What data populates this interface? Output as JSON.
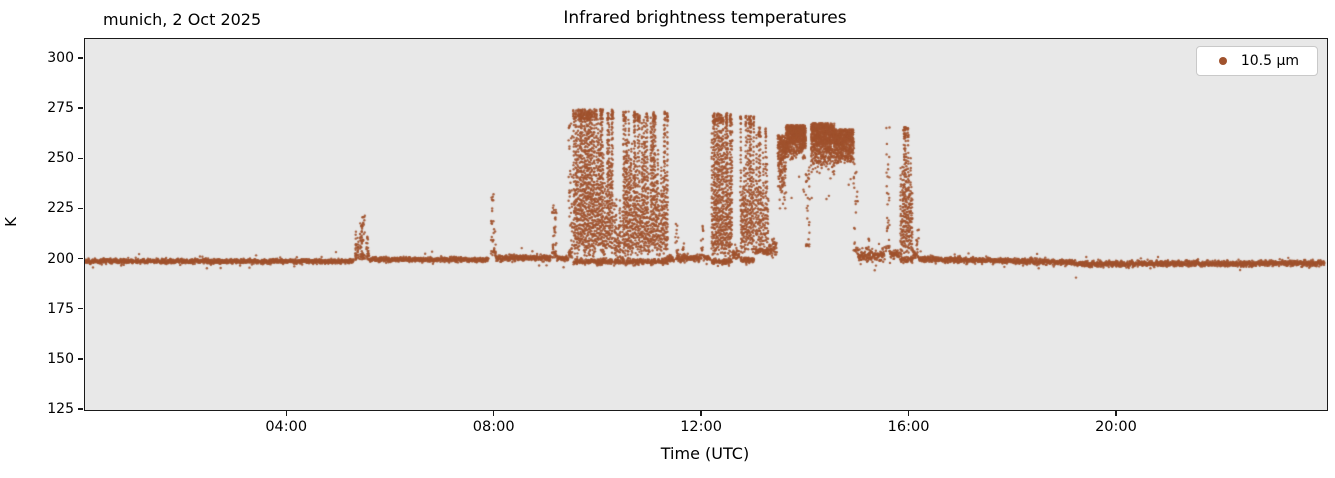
{
  "header": {
    "annotation": "munich, 2 Oct 2025",
    "title": "Infrared brightness temperatures"
  },
  "axes": {
    "xlabel": "Time (UTC)",
    "ylabel": "K",
    "x_ticks": [
      {
        "value": 4,
        "label": "04:00"
      },
      {
        "value": 8,
        "label": "08:00"
      },
      {
        "value": 12,
        "label": "12:00"
      },
      {
        "value": 16,
        "label": "16:00"
      },
      {
        "value": 20,
        "label": "20:00"
      }
    ],
    "y_ticks": [
      {
        "value": 125,
        "label": "125"
      },
      {
        "value": 150,
        "label": "150"
      },
      {
        "value": 175,
        "label": "175"
      },
      {
        "value": 200,
        "label": "200"
      },
      {
        "value": 225,
        "label": "225"
      },
      {
        "value": 250,
        "label": "250"
      },
      {
        "value": 275,
        "label": "275"
      },
      {
        "value": 300,
        "label": "300"
      }
    ],
    "spine_color": "#1a1a1a"
  },
  "legend": {
    "label": "10.5 μm",
    "marker_color": "#A0522D"
  },
  "chart_data": {
    "type": "scatter",
    "title": "Infrared brightness temperatures",
    "annotation": "munich, 2 Oct 2025",
    "xlabel": "Time (UTC)",
    "ylabel": "K",
    "xlim": [
      0.1,
      24.05
    ],
    "ylim": [
      125,
      310
    ],
    "plot_bg": "#e8e8e8",
    "grid": false,
    "legend_position": "upper right",
    "series": [
      {
        "name": "10.5 μm",
        "color": "#A0522D",
        "marker": "dot"
      }
    ],
    "segments": [
      {
        "kind": "flat",
        "t0": 0.1,
        "t1": 5.28,
        "y": 199.2,
        "noise": 0.55
      },
      {
        "kind": "column",
        "t0": 5.3,
        "t1": 5.38,
        "y0": 200,
        "y1": 214,
        "n": 25
      },
      {
        "kind": "column",
        "t0": 5.4,
        "t1": 5.5,
        "y0": 200,
        "y1": 222,
        "n": 45
      },
      {
        "kind": "column",
        "t0": 5.52,
        "t1": 5.58,
        "y0": 200,
        "y1": 212,
        "n": 18
      },
      {
        "kind": "flat",
        "t0": 5.58,
        "t1": 7.88,
        "y": 200.0,
        "noise": 0.55
      },
      {
        "kind": "column",
        "t0": 7.92,
        "t1": 8.02,
        "y0": 202,
        "y1": 235,
        "n": 28
      },
      {
        "kind": "flat",
        "t0": 8.02,
        "t1": 9.08,
        "y": 200.8,
        "noise": 0.7
      },
      {
        "kind": "column",
        "t0": 9.1,
        "t1": 9.2,
        "y0": 201,
        "y1": 228,
        "n": 35
      },
      {
        "kind": "flat",
        "t0": 9.2,
        "t1": 9.42,
        "y": 200.5,
        "noise": 0.6
      },
      {
        "kind": "column",
        "t0": 9.42,
        "t1": 9.5,
        "y0": 201,
        "y1": 268,
        "n": 40
      },
      {
        "kind": "burst",
        "t0": 9.52,
        "t1": 10.28,
        "y0": 199,
        "y1": 275,
        "cols": 46,
        "top_bias": 0.38
      },
      {
        "kind": "burst",
        "t0": 10.3,
        "t1": 10.44,
        "y0": 199,
        "y1": 232,
        "cols": 8,
        "top_bias": 0.2
      },
      {
        "kind": "burst",
        "t0": 10.46,
        "t1": 11.34,
        "y0": 199,
        "y1": 274,
        "cols": 52,
        "top_bias": 0.38
      },
      {
        "kind": "flat",
        "t0": 11.34,
        "t1": 11.46,
        "y": 200.5,
        "noise": 0.9
      },
      {
        "kind": "column",
        "t0": 11.48,
        "t1": 11.54,
        "y0": 200,
        "y1": 218,
        "n": 16
      },
      {
        "kind": "flat",
        "t0": 11.54,
        "t1": 11.96,
        "y": 200.8,
        "noise": 0.9
      },
      {
        "kind": "column",
        "t0": 11.62,
        "t1": 11.66,
        "y0": 200,
        "y1": 208,
        "n": 8
      },
      {
        "kind": "column",
        "t0": 11.97,
        "t1": 12.03,
        "y0": 200,
        "y1": 217,
        "n": 14
      },
      {
        "kind": "flat",
        "t0": 12.03,
        "t1": 12.16,
        "y": 200.8,
        "noise": 0.8
      },
      {
        "kind": "burst",
        "t0": 12.18,
        "t1": 12.58,
        "y0": 199,
        "y1": 273,
        "cols": 26,
        "top_bias": 0.45
      },
      {
        "kind": "flat",
        "t0": 12.58,
        "t1": 12.72,
        "y": 203,
        "noise": 1.4
      },
      {
        "kind": "burst",
        "t0": 12.74,
        "t1": 13.0,
        "y0": 200,
        "y1": 272,
        "cols": 16,
        "top_bias": 0.4
      },
      {
        "kind": "burst",
        "t0": 13.02,
        "t1": 13.28,
        "y0": 204,
        "y1": 266,
        "cols": 12,
        "top_bias": 0.25
      },
      {
        "kind": "flat",
        "t0": 13.28,
        "t1": 13.44,
        "y": 206,
        "noise": 2.2
      },
      {
        "kind": "blob",
        "t0": 13.46,
        "t1": 13.62,
        "y0": 225,
        "y1": 262,
        "spread": 14,
        "rows": 7
      },
      {
        "kind": "blob",
        "t0": 13.62,
        "t1": 14.0,
        "y0": 250,
        "y1": 267,
        "spread": 7,
        "rows": 9,
        "tail": 215
      },
      {
        "kind": "column",
        "t0": 14.0,
        "t1": 14.08,
        "y0": 205,
        "y1": 255,
        "n": 22
      },
      {
        "kind": "blob",
        "t0": 14.1,
        "t1": 14.55,
        "y0": 240,
        "y1": 268,
        "spread": 10,
        "rows": 9,
        "tail": 225
      },
      {
        "kind": "blob",
        "t0": 14.55,
        "t1": 14.92,
        "y0": 248,
        "y1": 265,
        "spread": 8,
        "rows": 8,
        "tail": 232
      },
      {
        "kind": "column",
        "t0": 14.92,
        "t1": 15.0,
        "y0": 203,
        "y1": 250,
        "n": 20
      },
      {
        "kind": "flat",
        "t0": 15.0,
        "t1": 15.52,
        "y": 202,
        "noise": 1.8
      },
      {
        "kind": "column",
        "t0": 15.18,
        "t1": 15.24,
        "y0": 200,
        "y1": 212,
        "n": 10
      },
      {
        "kind": "column",
        "t0": 15.54,
        "t1": 15.62,
        "y0": 204,
        "y1": 268,
        "n": 26
      },
      {
        "kind": "flat",
        "t0": 15.62,
        "t1": 15.8,
        "y": 203,
        "noise": 1.1
      },
      {
        "kind": "burst",
        "t0": 15.82,
        "t1": 16.06,
        "y0": 200,
        "y1": 266,
        "cols": 15,
        "top_bias": 0.5
      },
      {
        "kind": "flat",
        "t0": 16.06,
        "t1": 16.12,
        "y": 202.5,
        "noise": 1.1
      },
      {
        "kind": "column",
        "t0": 16.13,
        "t1": 16.18,
        "y0": 201,
        "y1": 215,
        "n": 12
      },
      {
        "kind": "flat",
        "t0": 16.18,
        "t1": 19.2,
        "y": 200.3,
        "noise": 0.7,
        "drift": -1.8
      },
      {
        "kind": "flat",
        "t0": 19.2,
        "t1": 24.0,
        "y": 197.8,
        "noise": 0.7,
        "drift": 0.4
      }
    ]
  }
}
